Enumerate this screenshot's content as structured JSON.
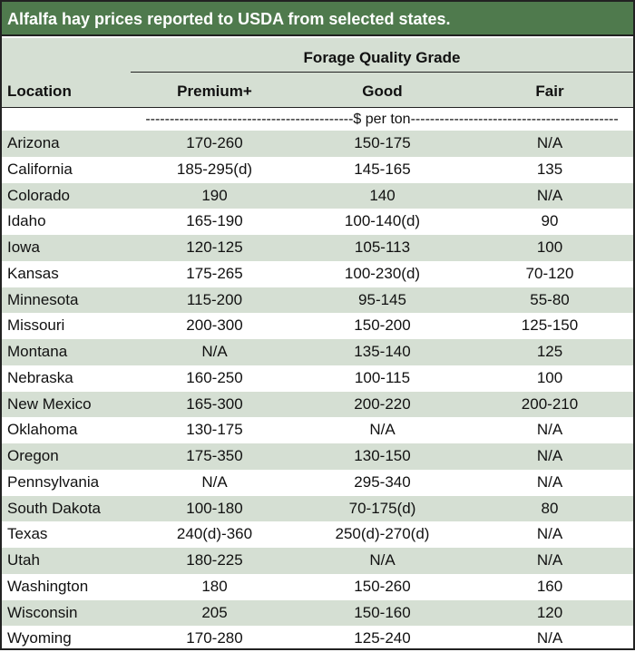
{
  "title": "Alfalfa hay prices reported to USDA from selected states.",
  "header": {
    "group_label": "Forage Quality Grade",
    "location_label": "Location",
    "columns": [
      "Premium+",
      "Good",
      "Fair"
    ]
  },
  "unit_label": "-------------------------------------------$ per ton-------------------------------------------",
  "rows": [
    {
      "location": "Arizona",
      "premium": "170-260",
      "good": "150-175",
      "fair": "N/A"
    },
    {
      "location": "California",
      "premium": "185-295(d)",
      "good": "145-165",
      "fair": "135"
    },
    {
      "location": "Colorado",
      "premium": "190",
      "good": "140",
      "fair": "N/A"
    },
    {
      "location": "Idaho",
      "premium": "165-190",
      "good": "100-140(d)",
      "fair": "90"
    },
    {
      "location": "Iowa",
      "premium": "120-125",
      "good": "105-113",
      "fair": "100"
    },
    {
      "location": "Kansas",
      "premium": "175-265",
      "good": "100-230(d)",
      "fair": "70-120"
    },
    {
      "location": "Minnesota",
      "premium": "115-200",
      "good": "95-145",
      "fair": "55-80"
    },
    {
      "location": "Missouri",
      "premium": "200-300",
      "good": "150-200",
      "fair": "125-150"
    },
    {
      "location": "Montana",
      "premium": "N/A",
      "good": "135-140",
      "fair": "125"
    },
    {
      "location": "Nebraska",
      "premium": "160-250",
      "good": "100-115",
      "fair": "100"
    },
    {
      "location": "New Mexico",
      "premium": "165-300",
      "good": "200-220",
      "fair": "200-210"
    },
    {
      "location": "Oklahoma",
      "premium": "130-175",
      "good": "N/A",
      "fair": "N/A"
    },
    {
      "location": "Oregon",
      "premium": "175-350",
      "good": "130-150",
      "fair": "N/A"
    },
    {
      "location": "Pennsylvania",
      "premium": "N/A",
      "good": "295-340",
      "fair": "N/A"
    },
    {
      "location": "South Dakota",
      "premium": "100-180",
      "good": "70-175(d)",
      "fair": "80"
    },
    {
      "location": "Texas",
      "premium": "240(d)-360",
      "good": "250(d)-270(d)",
      "fair": "N/A"
    },
    {
      "location": "Utah",
      "premium": "180-225",
      "good": "N/A",
      "fair": "N/A"
    },
    {
      "location": "Washington",
      "premium": "180",
      "good": "150-260",
      "fair": "160"
    },
    {
      "location": "Wisconsin",
      "premium": "205",
      "good": "150-160",
      "fair": "120"
    },
    {
      "location": "Wyoming",
      "premium": "170-280",
      "good": "125-240",
      "fair": "N/A"
    }
  ],
  "colors": {
    "title_bg": "#4f7a4d",
    "shade": "#d5dfd3",
    "text": "#111111"
  }
}
